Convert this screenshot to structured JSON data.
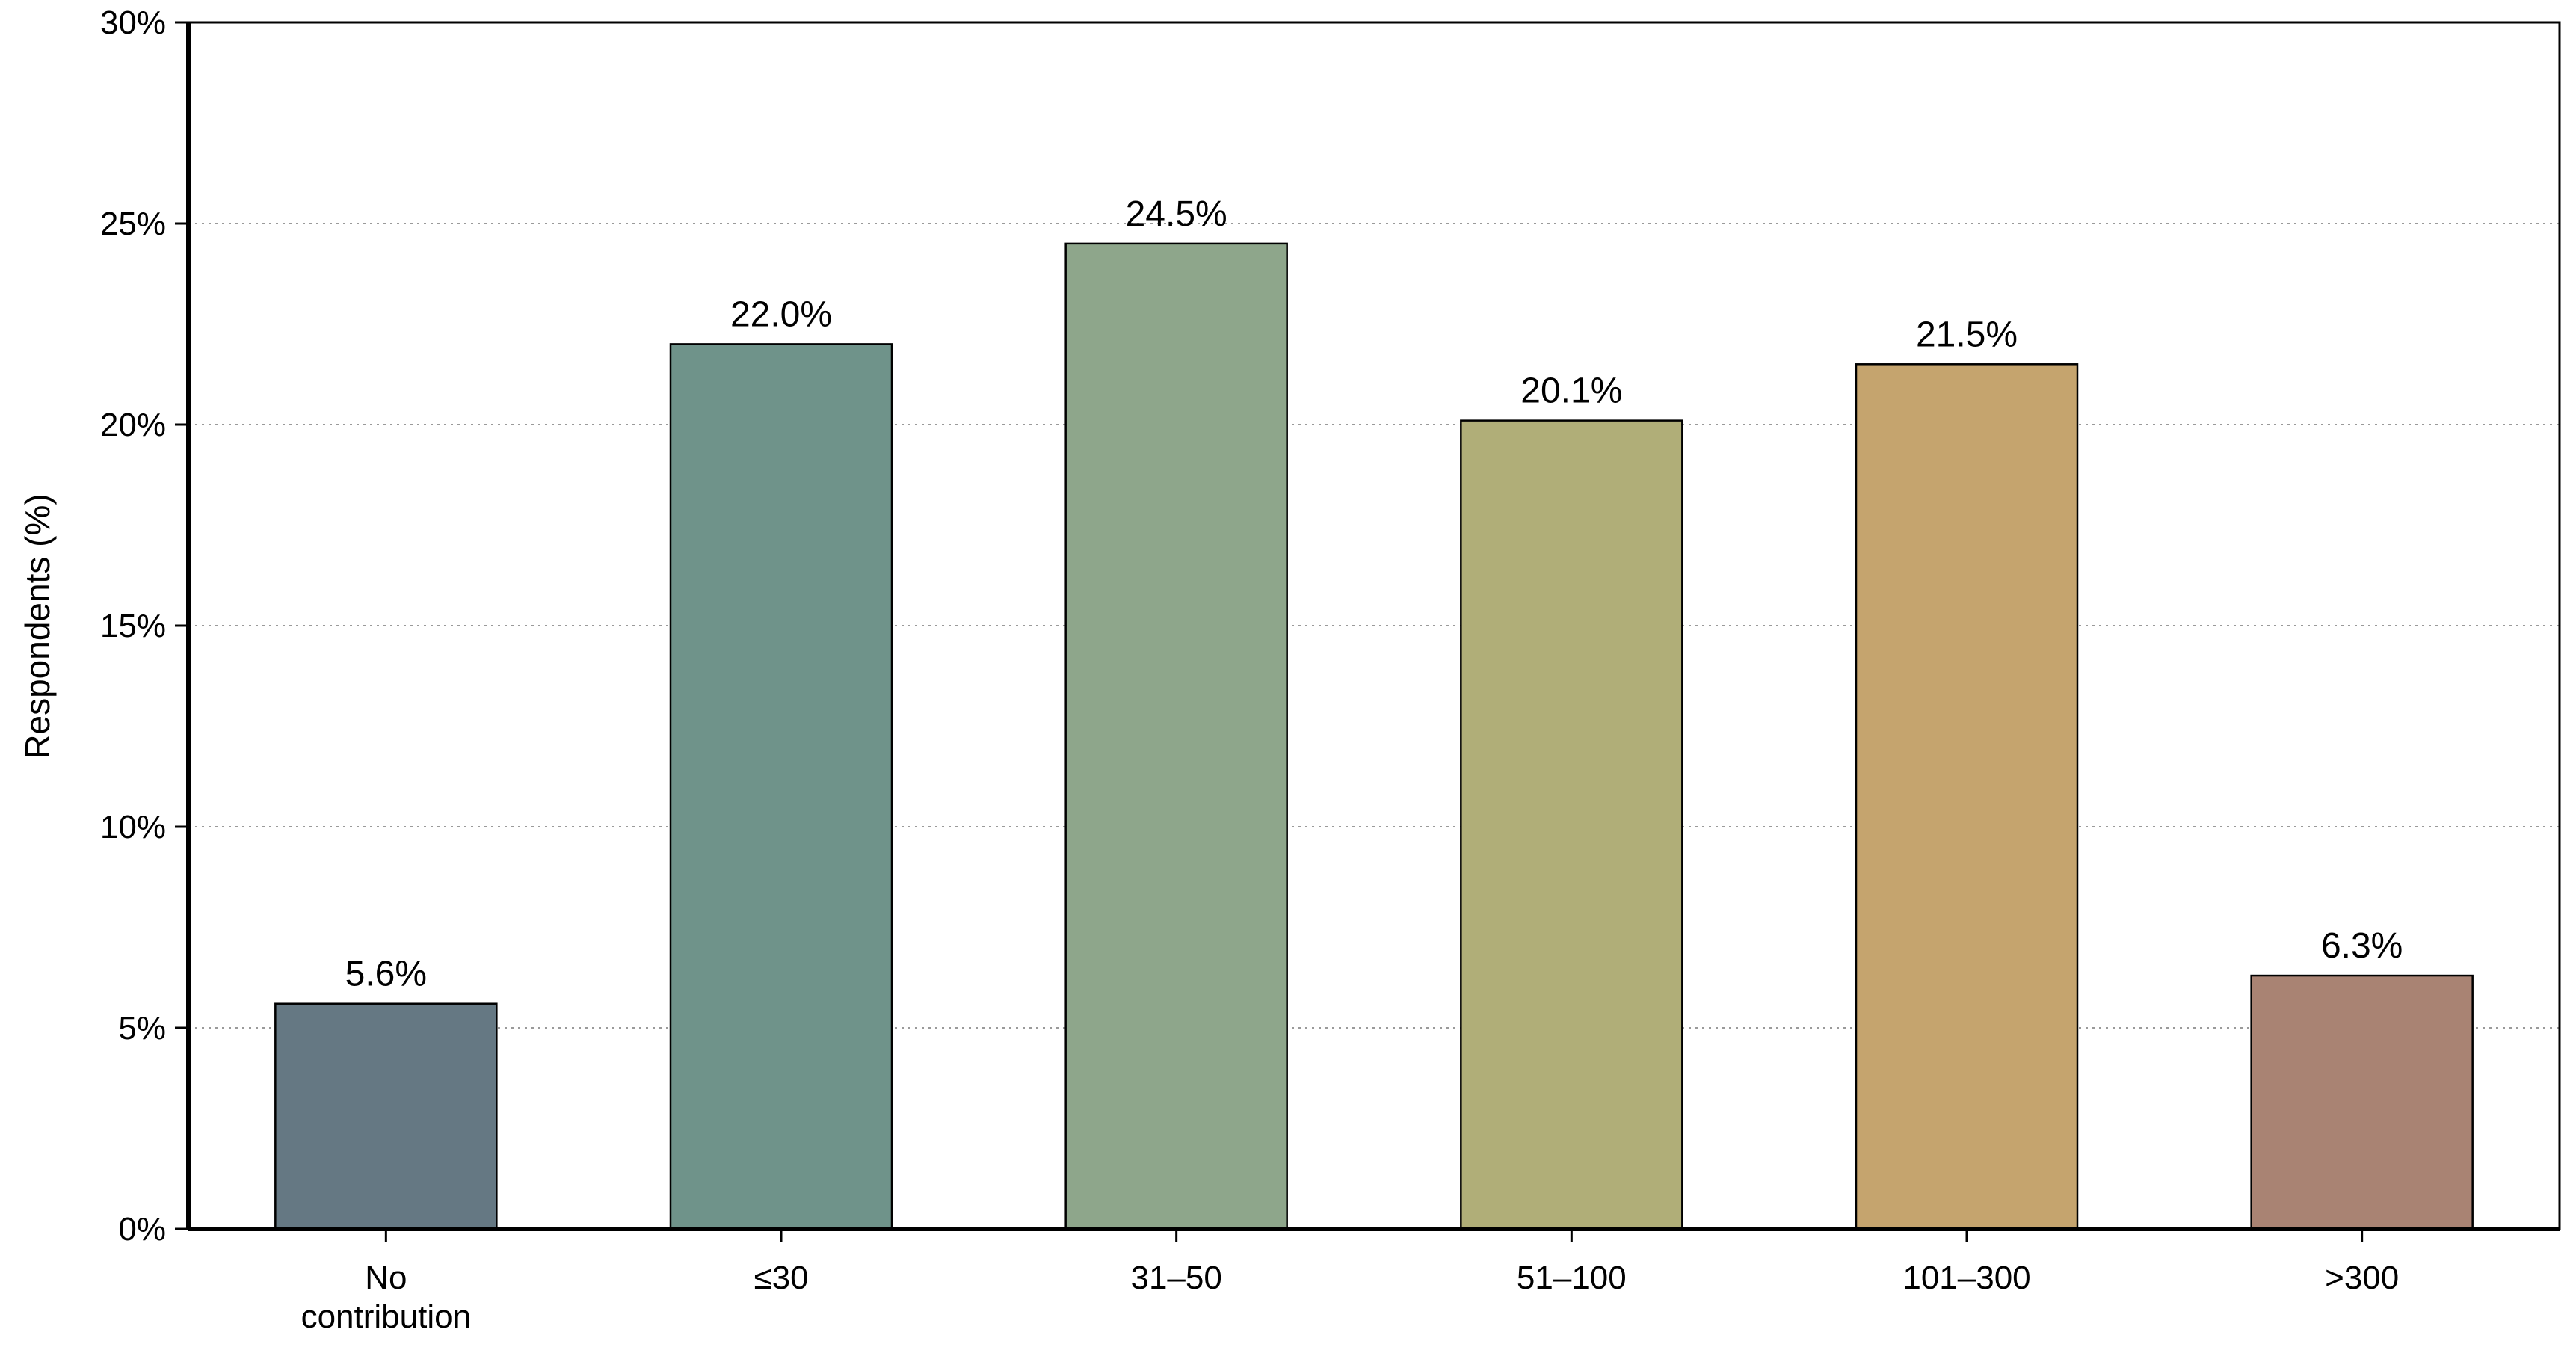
{
  "chart_data": {
    "type": "bar",
    "ylabel": "Respondents (%)",
    "xlabel": "",
    "ylim": [
      0,
      30
    ],
    "yticks": [
      0,
      5,
      10,
      15,
      20,
      25,
      30
    ],
    "ytick_labels": [
      "0%",
      "5%",
      "10%",
      "15%",
      "20%",
      "25%",
      "30%"
    ],
    "grid": "horizontal-dotted",
    "categories": [
      [
        "No",
        "contribution"
      ],
      [
        "≤30"
      ],
      [
        "31–50"
      ],
      [
        "51–100"
      ],
      [
        "101–300"
      ],
      [
        ">300"
      ]
    ],
    "values": [
      5.6,
      22.0,
      24.5,
      20.1,
      21.5,
      6.3
    ],
    "value_labels": [
      "5.6%",
      "22.0%",
      "24.5%",
      "20.1%",
      "21.5%",
      "6.3%"
    ],
    "colors": [
      "#657883",
      "#6f938a",
      "#8ea68b",
      "#b0ae78",
      "#c5a46e",
      "#a98373"
    ]
  }
}
